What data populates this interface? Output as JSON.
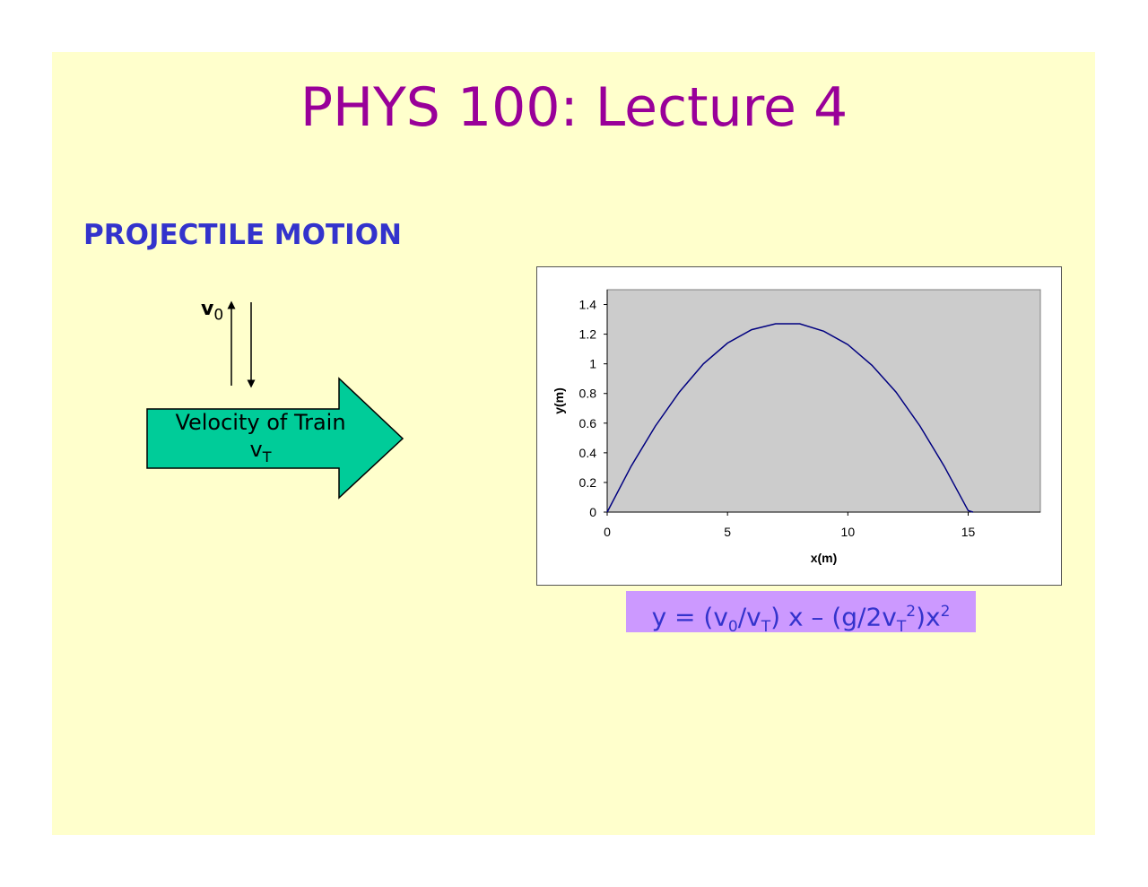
{
  "slide": {
    "title": "PHYS 100: Lecture 4",
    "subtitle": "PROJECTILE MOTION",
    "v0_label": "v",
    "v0_sub": "0",
    "train_label": "Velocity of Train",
    "vt_label": "v",
    "vt_sub": "T",
    "train_arrow_color": "#00cc99",
    "formula": {
      "p1": "y = (v",
      "s1": "0",
      "p2": "/v",
      "s2": "T",
      "p3": ") x – (g/2v",
      "s3": "T",
      "sup1": "2",
      "p4": ")x",
      "sup2": "2"
    }
  },
  "chart_data": {
    "type": "line",
    "xlabel": "x(m)",
    "ylabel": "y(m)",
    "xlim": [
      0,
      18
    ],
    "ylim": [
      0,
      1.5
    ],
    "xticks": [
      0,
      5,
      10,
      15
    ],
    "yticks": [
      0,
      0.2,
      0.4,
      0.6,
      0.8,
      1,
      1.2,
      1.4
    ],
    "grid": false,
    "plot_background": "#cccccc",
    "line_color": "#000080",
    "series": [
      {
        "x": [
          0,
          1,
          2,
          3,
          4,
          5,
          6,
          7,
          7.6,
          8,
          9,
          10,
          11,
          12,
          13,
          14,
          15,
          15.2
        ],
        "y": [
          0,
          0.31,
          0.58,
          0.81,
          1.0,
          1.14,
          1.23,
          1.27,
          1.27,
          1.27,
          1.22,
          1.13,
          0.99,
          0.81,
          0.58,
          0.31,
          0.01,
          0.0
        ]
      }
    ]
  }
}
